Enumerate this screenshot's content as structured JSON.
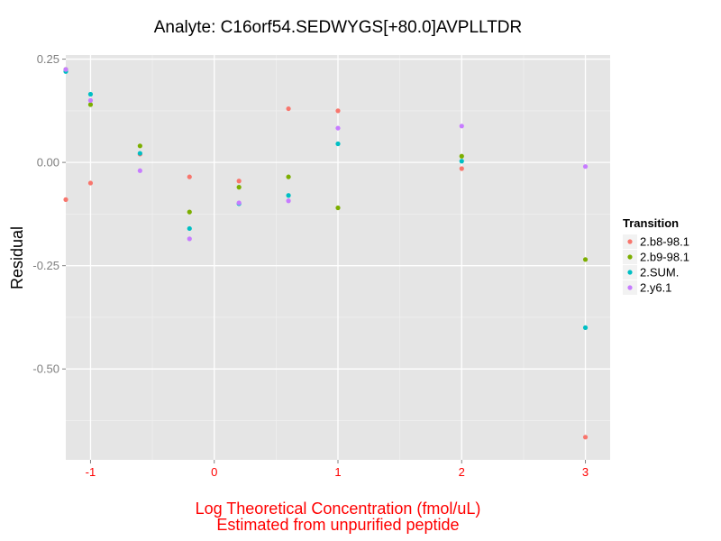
{
  "chart_data": {
    "type": "scatter",
    "title": "Analyte: C16orf54.SEDWYGS[+80.0]AVPLLTDR",
    "xlabel_lines": [
      "Log Theoretical Concentration (fmol/uL)",
      "Estimated from unpurified peptide"
    ],
    "ylabel": "Residual",
    "xlim": [
      -1.2,
      3.2
    ],
    "ylim": [
      -0.72,
      0.26
    ],
    "x_ticks": [
      -1,
      0,
      1,
      2,
      3
    ],
    "x_tick_labels": [
      "-1",
      "0",
      "1",
      "2",
      "3"
    ],
    "y_ticks": [
      0.25,
      0,
      -0.25,
      -0.5
    ],
    "y_tick_labels": [
      "0.25",
      "0.00",
      "-0.25",
      "-0.50"
    ],
    "grid": true,
    "legend": {
      "title": "Transition",
      "position": "right"
    },
    "series": [
      {
        "name": "2.b8-98.1",
        "color": "#F8766D",
        "x": [
          -1.2,
          -1.0,
          -0.6,
          -0.2,
          0.2,
          0.6,
          1.0,
          2.0,
          3.0
        ],
        "y": [
          -0.09,
          -0.05,
          0.02,
          -0.035,
          -0.045,
          0.13,
          0.125,
          -0.015,
          -0.665
        ]
      },
      {
        "name": "2.b9-98.1",
        "color": "#7CAE00",
        "x": [
          -1.2,
          -1.0,
          -0.6,
          -0.2,
          0.2,
          0.6,
          1.0,
          2.0,
          3.0
        ],
        "y": [
          0.225,
          0.14,
          0.04,
          -0.12,
          -0.06,
          -0.035,
          -0.11,
          0.015,
          -0.235
        ]
      },
      {
        "name": "2.SUM.",
        "color": "#00BFC4",
        "x": [
          -1.2,
          -1.0,
          -0.6,
          -0.2,
          0.2,
          0.6,
          1.0,
          2.0,
          3.0
        ],
        "y": [
          0.22,
          0.165,
          0.022,
          -0.16,
          -0.1,
          -0.08,
          0.045,
          0.003,
          -0.4
        ]
      },
      {
        "name": "2.y6.1",
        "color": "#C77CFF",
        "x": [
          -1.2,
          -1.0,
          -0.6,
          -0.2,
          0.2,
          0.6,
          1.0,
          2.0,
          3.0
        ],
        "y": [
          0.225,
          0.15,
          -0.02,
          -0.185,
          -0.098,
          -0.093,
          0.083,
          0.088,
          -0.01
        ]
      }
    ]
  },
  "colors": {
    "panel_bg": "#e5e5e5",
    "grid_major": "#ffffff",
    "grid_minor": "#f0f0f0",
    "x_axis_text": "#ff0000"
  }
}
